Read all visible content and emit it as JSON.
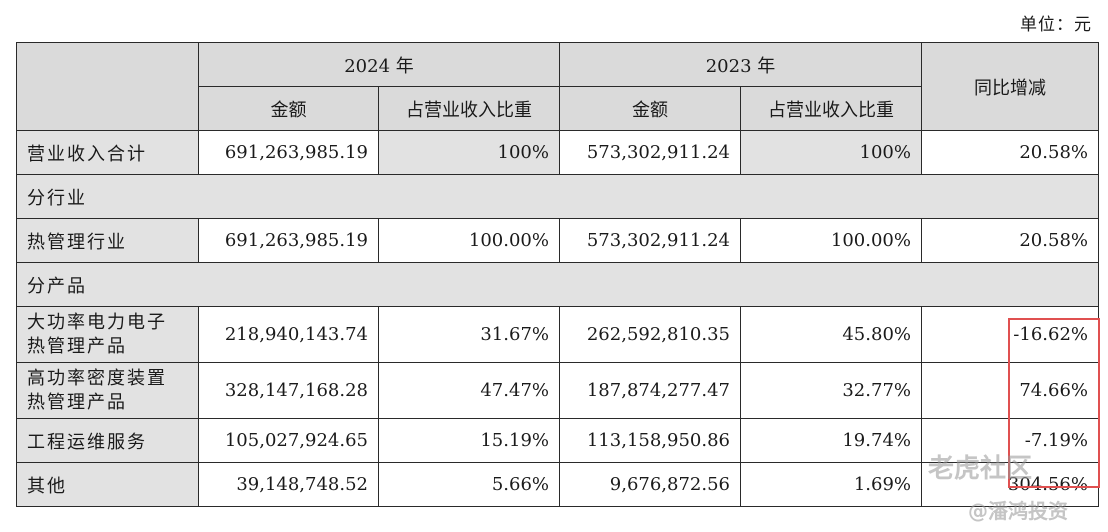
{
  "unit_label": "单位：元",
  "header": {
    "col_2024": "2024 年",
    "col_2023": "2023 年",
    "yoy": "同比增减",
    "amount": "金额",
    "ratio": "占营业收入比重"
  },
  "rows": {
    "total": {
      "label": "营业收入合计",
      "a24": "691,263,985.19",
      "r24": "100%",
      "a23": "573,302,911.24",
      "r23": "100%",
      "yoy": "20.58%"
    },
    "section_industry": "分行业",
    "thermal": {
      "label": "热管理行业",
      "a24": "691,263,985.19",
      "r24": "100.00%",
      "a23": "573,302,911.24",
      "r23": "100.00%",
      "yoy": "20.58%"
    },
    "section_product": "分产品",
    "p1": {
      "label_1": "大功率电力电子",
      "label_2": "热管理产品",
      "a24": "218,940,143.74",
      "r24": "31.67%",
      "a23": "262,592,810.35",
      "r23": "45.80%",
      "yoy": "-16.62%"
    },
    "p2": {
      "label_1": "高功率密度装置",
      "label_2": "热管理产品",
      "a24": "328,147,168.28",
      "r24": "47.47%",
      "a23": "187,874,277.47",
      "r23": "32.77%",
      "yoy": "74.66%"
    },
    "p3": {
      "label": "工程运维服务",
      "a24": "105,027,924.65",
      "r24": "15.19%",
      "a23": "113,158,950.86",
      "r23": "19.74%",
      "yoy": "-7.19%"
    },
    "p4": {
      "label": "其他",
      "a24": "39,148,748.52",
      "r24": "5.66%",
      "a23": "9,676,872.56",
      "r23": "1.69%",
      "yoy": "304.56%"
    }
  },
  "watermark": {
    "line1": "老虎社区",
    "line2": "@潘鸿投资"
  },
  "colors": {
    "header_bg": "#dadada",
    "shade_bg": "#e2e2e2",
    "highlight": "#e05050"
  }
}
